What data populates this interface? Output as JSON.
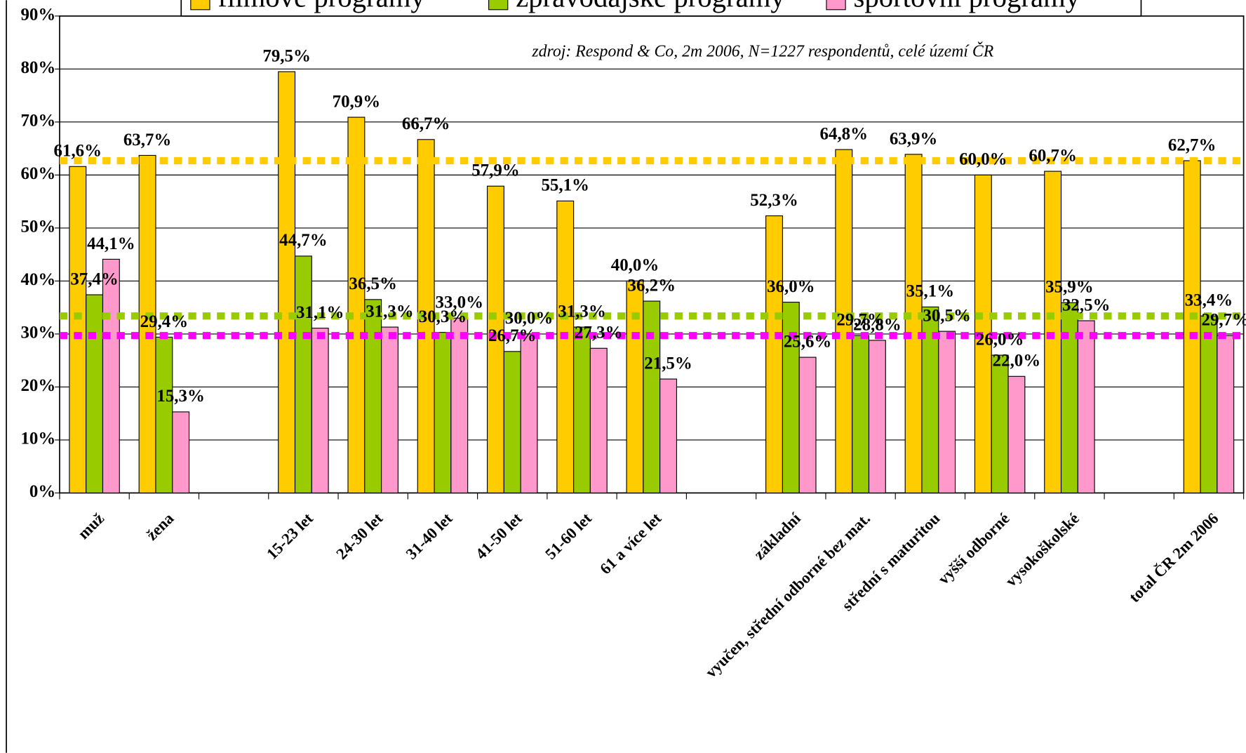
{
  "chart_data": {
    "type": "bar",
    "subtitle": "zdroj: Respond & Co, 2m 2006, N=1227 respondentů, celé území ČR",
    "categories": [
      "muž",
      "žena",
      null,
      "15-23 let",
      "24-30 let",
      "31-40 let",
      "41-50 let",
      "51-60 let",
      "61 a více let",
      null,
      "základní",
      "vyučen, střední odborné bez mat.",
      "střední  s maturitou",
      "vyšší odborné",
      "vysokoškolské",
      null,
      "total ČR 2m 2006"
    ],
    "series": [
      {
        "name": "filmové programy",
        "color": "#FFCC00",
        "values": [
          61.6,
          63.7,
          null,
          79.5,
          70.9,
          66.7,
          57.9,
          55.1,
          40.0,
          null,
          52.3,
          64.8,
          63.9,
          60.0,
          60.7,
          null,
          62.7
        ],
        "value_labels": [
          "61,6%",
          "63,7%",
          null,
          "79,5%",
          "70,9%",
          "66,7%",
          "57,9%",
          "55,1%",
          "40,0%",
          null,
          "52,3%",
          "64,8%",
          "63,9%",
          "60,0%",
          "60,7%",
          null,
          "62,7%"
        ]
      },
      {
        "name": "zpravodajské programy",
        "color": "#99CC00",
        "values": [
          37.4,
          29.4,
          null,
          44.7,
          36.5,
          30.3,
          26.7,
          31.3,
          36.2,
          null,
          36.0,
          29.7,
          35.1,
          26.0,
          35.9,
          null,
          33.4
        ],
        "value_labels": [
          "37,4%",
          "29,4%",
          null,
          "44,7%",
          "36,5%",
          "30,3%",
          "26,7%",
          "31,3%",
          "36,2%",
          null,
          "36,0%",
          "29,7%",
          "35,1%",
          "26,0%",
          "35,9%",
          null,
          "33,4%"
        ]
      },
      {
        "name": "sportovní programy",
        "color": "#FF99CC",
        "values": [
          44.1,
          15.3,
          null,
          31.1,
          31.3,
          33.0,
          30.0,
          27.3,
          21.5,
          null,
          25.6,
          28.8,
          30.5,
          22.0,
          32.5,
          null,
          29.7
        ],
        "value_labels": [
          "44,1%",
          "15,3%",
          null,
          "31,1%",
          "31,3%",
          "33,0%",
          "30,0%",
          "27,3%",
          "21,5%",
          null,
          "25,6%",
          "28,8%",
          "30,5%",
          "22,0%",
          "32,5%",
          null,
          "29,7%"
        ]
      }
    ],
    "reference_lines": [
      {
        "value": 62.7,
        "color": "#FFCC00"
      },
      {
        "value": 33.4,
        "color": "#99CC00"
      },
      {
        "value": 29.7,
        "color": "#FF00FF"
      }
    ],
    "ylim": [
      0,
      90
    ],
    "yticks": [
      {
        "value": 0,
        "label": "0%"
      },
      {
        "value": 10,
        "label": "10%"
      },
      {
        "value": 20,
        "label": "20%"
      },
      {
        "value": 30,
        "label": "30%"
      },
      {
        "value": 40,
        "label": "40%"
      },
      {
        "value": 50,
        "label": "50%"
      },
      {
        "value": 60,
        "label": "60%"
      },
      {
        "value": 70,
        "label": "70%"
      },
      {
        "value": 80,
        "label": "80%"
      },
      {
        "value": 90,
        "label": "90%"
      }
    ],
    "grid": true,
    "legend": "top"
  }
}
